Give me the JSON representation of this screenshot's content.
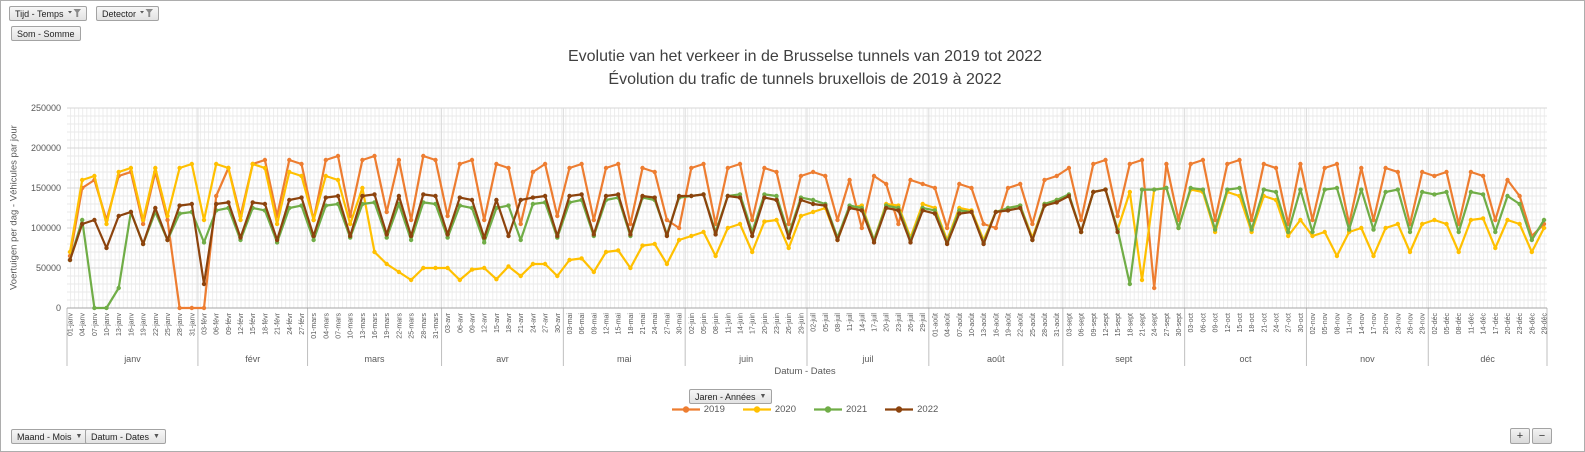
{
  "pivot_buttons": {
    "tijd_label": "Tijd - Temps",
    "detector_label": "Detector",
    "som_label": "Som - Somme",
    "maand_label": "Maand - Mois",
    "datum_label": "Datum - Dates",
    "jaren_label": "Jaren - Années",
    "expand_label": "+",
    "collapse_label": "−",
    "filter_icon": "funnel-with-caret",
    "dropdown_icon": "caret-down"
  },
  "title": {
    "line1": "Evolutie van het verkeer in de Brusselse tunnels van 2019 tot 2022",
    "line2": "Évolution du trafic de tunnels bruxellois de 2019 à 2022"
  },
  "chart_data": {
    "type": "line",
    "title": "Evolutie van het verkeer in de Brusselse tunnels van 2019 tot 2022 / Évolution du trafic de tunnels bruxellois de 2019 à 2022",
    "xlabel": "Datum - Dates",
    "ylabel": "Voertuigen per dag - Véhicules par jour",
    "ylim": [
      0,
      250000
    ],
    "ytick_step": 50000,
    "grid": true,
    "legend_position": "bottom",
    "months": [
      {
        "name": "janv",
        "ticks": 11
      },
      {
        "name": "févr",
        "ticks": 9
      },
      {
        "name": "mars",
        "ticks": 11
      },
      {
        "name": "avr",
        "ticks": 10
      },
      {
        "name": "mai",
        "ticks": 10
      },
      {
        "name": "juin",
        "ticks": 10
      },
      {
        "name": "juil",
        "ticks": 10
      },
      {
        "name": "août",
        "ticks": 11
      },
      {
        "name": "sept",
        "ticks": 10
      },
      {
        "name": "oct",
        "ticks": 10
      },
      {
        "name": "nov",
        "ticks": 10
      },
      {
        "name": "déc",
        "ticks": 10
      }
    ],
    "categories": [
      "01-janv",
      "04-janv",
      "07-janv",
      "10-janv",
      "13-janv",
      "16-janv",
      "19-janv",
      "22-janv",
      "25-janv",
      "28-janv",
      "31-janv",
      "03-févr",
      "06-févr",
      "09-févr",
      "12-févr",
      "15-févr",
      "18-févr",
      "21-févr",
      "24-févr",
      "27-févr",
      "01-mars",
      "04-mars",
      "07-mars",
      "10-mars",
      "13-mars",
      "16-mars",
      "19-mars",
      "22-mars",
      "25-mars",
      "28-mars",
      "31-mars",
      "03-avr",
      "06-avr",
      "09-avr",
      "12-avr",
      "15-avr",
      "18-avr",
      "21-avr",
      "24-avr",
      "27-avr",
      "30-avr",
      "03-mai",
      "06-mai",
      "09-mai",
      "12-mai",
      "15-mai",
      "18-mai",
      "21-mai",
      "24-mai",
      "27-mai",
      "30-mai",
      "02-juin",
      "05-juin",
      "08-juin",
      "11-juin",
      "14-juin",
      "17-juin",
      "20-juin",
      "23-juin",
      "26-juin",
      "29-juin",
      "02-juil",
      "05-juil",
      "08-juil",
      "11-juil",
      "14-juil",
      "17-juil",
      "20-juil",
      "23-juil",
      "26-juil",
      "29-juil",
      "01-août",
      "04-août",
      "07-août",
      "10-août",
      "13-août",
      "16-août",
      "19-août",
      "22-août",
      "25-août",
      "28-août",
      "31-août",
      "03-sept",
      "06-sept",
      "09-sept",
      "12-sept",
      "15-sept",
      "18-sept",
      "21-sept",
      "24-sept",
      "27-sept",
      "30-sept",
      "03-oct",
      "06-oct",
      "09-oct",
      "12-oct",
      "15-oct",
      "18-oct",
      "21-oct",
      "24-oct",
      "27-oct",
      "30-oct",
      "02-nov",
      "05-nov",
      "08-nov",
      "11-nov",
      "14-nov",
      "17-nov",
      "20-nov",
      "23-nov",
      "26-nov",
      "29-nov",
      "02-déc",
      "05-déc",
      "08-déc",
      "11-déc",
      "14-déc",
      "17-déc",
      "20-déc",
      "23-déc",
      "26-déc",
      "29-déc"
    ],
    "series": [
      {
        "name": "2019",
        "color": "#ED7D31",
        "values": [
          65000,
          150000,
          160000,
          110000,
          165000,
          170000,
          105000,
          170000,
          110000,
          0,
          0,
          0,
          140000,
          175000,
          115000,
          180000,
          185000,
          115000,
          185000,
          180000,
          110000,
          185000,
          190000,
          115000,
          185000,
          190000,
          120000,
          185000,
          110000,
          190000,
          185000,
          115000,
          180000,
          185000,
          110000,
          180000,
          175000,
          105000,
          170000,
          180000,
          115000,
          175000,
          180000,
          110000,
          175000,
          180000,
          105000,
          175000,
          170000,
          110000,
          100000,
          175000,
          180000,
          105000,
          175000,
          180000,
          110000,
          175000,
          170000,
          105000,
          165000,
          170000,
          165000,
          110000,
          160000,
          100000,
          165000,
          155000,
          105000,
          160000,
          155000,
          150000,
          100000,
          155000,
          150000,
          105000,
          100000,
          150000,
          155000,
          105000,
          160000,
          165000,
          175000,
          110000,
          180000,
          185000,
          115000,
          180000,
          185000,
          25000,
          180000,
          110000,
          180000,
          185000,
          110000,
          180000,
          185000,
          110000,
          180000,
          175000,
          105000,
          180000,
          110000,
          175000,
          180000,
          105000,
          175000,
          110000,
          175000,
          170000,
          105000,
          170000,
          165000,
          170000,
          105000,
          170000,
          165000,
          110000,
          160000,
          140000,
          90000,
          105000
        ]
      },
      {
        "name": "2020",
        "color": "#FFC000",
        "values": [
          70000,
          160000,
          165000,
          105000,
          170000,
          175000,
          110000,
          175000,
          115000,
          175000,
          180000,
          110000,
          180000,
          175000,
          110000,
          180000,
          175000,
          105000,
          170000,
          165000,
          110000,
          165000,
          160000,
          105000,
          150000,
          70000,
          55000,
          45000,
          35000,
          50000,
          50000,
          50000,
          35000,
          48000,
          50000,
          36000,
          52000,
          40000,
          55000,
          55000,
          40000,
          60000,
          62000,
          45000,
          70000,
          72000,
          50000,
          78000,
          80000,
          55000,
          85000,
          90000,
          95000,
          65000,
          100000,
          105000,
          70000,
          108000,
          110000,
          75000,
          115000,
          120000,
          125000,
          85000,
          125000,
          128000,
          85000,
          130000,
          128000,
          88000,
          130000,
          125000,
          85000,
          125000,
          122000,
          85000,
          120000,
          125000,
          128000,
          88000,
          130000,
          135000,
          140000,
          95000,
          145000,
          148000,
          98000,
          145000,
          35000,
          148000,
          150000,
          100000,
          148000,
          145000,
          95000,
          145000,
          140000,
          95000,
          140000,
          135000,
          90000,
          110000,
          90000,
          95000,
          65000,
          95000,
          100000,
          65000,
          100000,
          105000,
          70000,
          105000,
          110000,
          105000,
          70000,
          110000,
          112000,
          75000,
          110000,
          105000,
          70000,
          100000
        ]
      },
      {
        "name": "2021",
        "color": "#70AD47",
        "values": [
          60000,
          110000,
          0,
          0,
          25000,
          120000,
          80000,
          120000,
          85000,
          118000,
          120000,
          82000,
          122000,
          125000,
          85000,
          125000,
          122000,
          82000,
          125000,
          128000,
          85000,
          128000,
          130000,
          88000,
          130000,
          132000,
          88000,
          130000,
          85000,
          132000,
          130000,
          88000,
          128000,
          125000,
          82000,
          125000,
          128000,
          85000,
          130000,
          132000,
          88000,
          132000,
          135000,
          90000,
          135000,
          138000,
          90000,
          138000,
          135000,
          92000,
          138000,
          140000,
          142000,
          95000,
          140000,
          142000,
          95000,
          142000,
          140000,
          92000,
          138000,
          135000,
          130000,
          88000,
          128000,
          125000,
          85000,
          128000,
          125000,
          85000,
          125000,
          122000,
          82000,
          122000,
          120000,
          82000,
          120000,
          125000,
          128000,
          85000,
          130000,
          135000,
          142000,
          95000,
          145000,
          148000,
          98000,
          30000,
          148000,
          148000,
          150000,
          100000,
          150000,
          148000,
          98000,
          148000,
          150000,
          98000,
          148000,
          145000,
          95000,
          148000,
          95000,
          148000,
          150000,
          98000,
          148000,
          98000,
          145000,
          148000,
          95000,
          145000,
          142000,
          145000,
          95000,
          145000,
          142000,
          95000,
          140000,
          130000,
          85000,
          110000
        ]
      },
      {
        "name": "2022",
        "color": "#8C430D",
        "values": [
          60000,
          105000,
          110000,
          75000,
          115000,
          120000,
          80000,
          125000,
          85000,
          128000,
          130000,
          30000,
          130000,
          132000,
          88000,
          132000,
          130000,
          85000,
          135000,
          138000,
          90000,
          138000,
          140000,
          90000,
          140000,
          142000,
          92000,
          140000,
          90000,
          142000,
          140000,
          92000,
          138000,
          135000,
          88000,
          135000,
          90000,
          135000,
          138000,
          140000,
          90000,
          140000,
          142000,
          92000,
          140000,
          142000,
          92000,
          140000,
          138000,
          90000,
          140000,
          140000,
          142000,
          92000,
          140000,
          138000,
          90000,
          138000,
          135000,
          88000,
          135000,
          130000,
          128000,
          85000,
          125000,
          122000,
          82000,
          125000,
          122000,
          82000,
          122000,
          118000,
          80000,
          118000,
          120000,
          80000,
          120000,
          122000,
          125000,
          85000,
          128000,
          132000,
          140000,
          95000,
          145000,
          148000,
          95000,
          null,
          null,
          null,
          null,
          null,
          null,
          null,
          null,
          null,
          null,
          null,
          null,
          null,
          null,
          null,
          null,
          null,
          null,
          null,
          null,
          null,
          null,
          null,
          null,
          null,
          null,
          null,
          null,
          null,
          null,
          null,
          null,
          null,
          null,
          null
        ]
      }
    ]
  }
}
